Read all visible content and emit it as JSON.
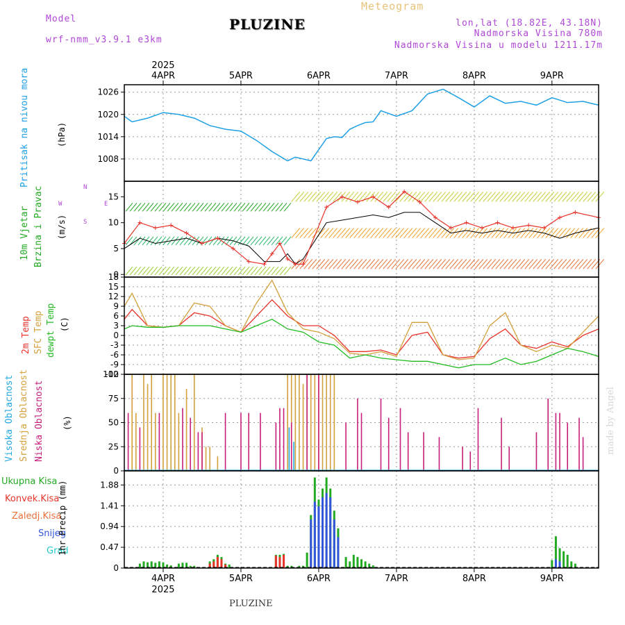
{
  "header": {
    "model_label": "Model",
    "model_name": "wrf-nmm_v3.9.1 e3km",
    "title": "PLUZINE",
    "subtitle": "Meteogram",
    "coords": "lon,lat (18.82E, 43.18N)",
    "altitude": "Nadmorska Visina 780m",
    "model_altitude": "Nadmorska Visina u modelu 1211.17m"
  },
  "footer": {
    "station": "PLUZINE",
    "credit": "made by Angel"
  },
  "colors": {
    "pressure": "#1ea0e6",
    "wind": "#22aa22",
    "temp2m": "#e8322a",
    "sfc": "#d4a03c",
    "dewpt": "#22bb22",
    "high": "#22a8e0",
    "mid": "#d4a03c",
    "low": "#c81e7a",
    "precip": "#22aa22",
    "conv": "#e8322a",
    "snow": "#3355dd",
    "grad": "#22cccc"
  },
  "chart_data": [
    {
      "type": "line",
      "name": "pressure",
      "ylabel_title": "Pritisak na nivou mora",
      "ylabel_unit": "(hPa)",
      "ylim": [
        1002,
        1028
      ],
      "yticks": [
        "1026",
        "1020",
        "1014",
        "1008"
      ],
      "ytick_values": [
        1026,
        1020,
        1014,
        1008
      ],
      "x": [
        0,
        0.1,
        0.3,
        0.5,
        0.7,
        0.9,
        1.1,
        1.3,
        1.5,
        1.7,
        1.9,
        2.1,
        2.2,
        2.3,
        2.4,
        2.5,
        2.6,
        2.7,
        2.8,
        2.9,
        3.0,
        3.1,
        3.2,
        3.3,
        3.5,
        3.7,
        3.9,
        4.1,
        4.3,
        4.5,
        4.7,
        4.9,
        5.1,
        5.3,
        5.5,
        5.7,
        5.9,
        6.1
      ],
      "values": [
        1019.5,
        1018,
        1019,
        1020.5,
        1020,
        1019,
        1017,
        1016,
        1015.5,
        1013,
        1010,
        1007.5,
        1008.5,
        1008,
        1007.5,
        1010.5,
        1013.5,
        1014,
        1013.8,
        1016,
        1017,
        1017.8,
        1018,
        1021,
        1019.5,
        1021,
        1025.5,
        1026.8,
        1024.5,
        1022,
        1025,
        1023,
        1023.5,
        1022.5,
        1024.5,
        1023.2,
        1023.5,
        1022.5
      ]
    },
    {
      "type": "line",
      "name": "wind",
      "ylabel_title": "10m Vjetar",
      "ylabel_sub": "Brzina i Pravac",
      "ylabel_unit": "(m/s)",
      "ylim": [
        -0.5,
        18
      ],
      "yticks": [
        "15",
        "10",
        "5",
        "0"
      ],
      "ytick_values": [
        15,
        10,
        5,
        0
      ],
      "compass": {
        "n": "N",
        "e": "E",
        "w": "W",
        "s": "S"
      },
      "series": [
        {
          "name": "speed",
          "x": [
            0,
            0.2,
            0.4,
            0.6,
            0.8,
            1.0,
            1.2,
            1.4,
            1.6,
            1.8,
            2.0,
            2.1,
            2.2,
            2.3,
            2.6,
            2.8,
            3.0,
            3.2,
            3.4,
            3.6,
            3.8,
            4.0,
            4.2,
            4.4,
            4.6,
            4.8,
            5.0,
            5.2,
            5.4,
            5.6,
            5.8,
            6.1
          ],
          "values": [
            5,
            7,
            6,
            6.5,
            7,
            6,
            7,
            6.5,
            5.5,
            2.5,
            2.5,
            4,
            2,
            3,
            10,
            10.5,
            11,
            11.5,
            11,
            12,
            12,
            10,
            8,
            8.5,
            8,
            8.5,
            8,
            8.5,
            8,
            7,
            8,
            9
          ]
        },
        {
          "name": "gust",
          "x": [
            0,
            0.2,
            0.4,
            0.6,
            0.8,
            1.0,
            1.2,
            1.4,
            1.6,
            1.8,
            1.9,
            2.0,
            2.1,
            2.2,
            2.3,
            2.6,
            2.8,
            3.0,
            3.2,
            3.4,
            3.6,
            3.8,
            4.0,
            4.2,
            4.4,
            4.6,
            4.8,
            5.0,
            5.2,
            5.4,
            5.6,
            5.8,
            6.1
          ],
          "values": [
            6,
            10,
            9,
            9.5,
            8,
            6,
            7,
            5,
            2.5,
            2,
            4,
            6,
            3,
            2,
            2,
            13,
            15,
            14,
            15,
            13,
            16,
            14,
            11,
            9,
            10,
            9,
            10,
            9,
            9.5,
            9,
            11,
            12,
            11
          ]
        }
      ]
    },
    {
      "type": "line",
      "name": "temperature",
      "ylabel_title": "2m Temp",
      "ylabel_sfc": "SFC Temp",
      "ylabel_dew": "dewpt Temp",
      "ylabel_unit": "(C)",
      "ylim": [
        -12,
        18
      ],
      "yticks": [
        "18",
        "15",
        "12",
        "9",
        "6",
        "3",
        "0",
        "-3",
        "-6",
        "-9",
        "-12"
      ],
      "ytick_values": [
        18,
        15,
        12,
        9,
        6,
        3,
        0,
        -3,
        -6,
        -9,
        -12
      ],
      "series": [
        {
          "name": "2m",
          "x": [
            0,
            0.1,
            0.3,
            0.5,
            0.7,
            0.9,
            1.1,
            1.3,
            1.5,
            1.7,
            1.9,
            2.1,
            2.3,
            2.5,
            2.7,
            2.9,
            3.1,
            3.3,
            3.5,
            3.7,
            3.9,
            4.1,
            4.3,
            4.5,
            4.7,
            4.9,
            5.1,
            5.3,
            5.5,
            5.7,
            5.9,
            6.1
          ],
          "values": [
            5,
            8,
            3,
            2.5,
            3,
            7,
            6,
            3,
            1,
            6,
            11,
            6,
            3,
            3,
            0,
            -5,
            -5,
            -4.5,
            -6,
            0,
            1,
            -6,
            -7,
            -6.5,
            -1,
            2,
            -3,
            -4,
            -2,
            -3.5,
            0,
            2
          ]
        },
        {
          "name": "sfc",
          "x": [
            0,
            0.1,
            0.3,
            0.5,
            0.7,
            0.9,
            1.1,
            1.3,
            1.5,
            1.7,
            1.9,
            2.1,
            2.3,
            2.5,
            2.7,
            2.9,
            3.1,
            3.3,
            3.5,
            3.7,
            3.9,
            4.1,
            4.3,
            4.5,
            4.7,
            4.9,
            5.1,
            5.3,
            5.5,
            5.7,
            5.9,
            6.1
          ],
          "values": [
            9,
            13,
            3,
            2.5,
            3,
            10,
            9,
            3,
            1,
            10,
            17,
            7,
            2,
            1,
            -1,
            -5.5,
            -6,
            -5,
            -6.5,
            4,
            4,
            -6,
            -7.5,
            -7,
            3,
            7,
            -3,
            -5,
            -3,
            -4,
            1,
            6
          ]
        },
        {
          "name": "dewpt",
          "x": [
            0,
            0.1,
            0.3,
            0.5,
            0.7,
            0.9,
            1.1,
            1.3,
            1.5,
            1.7,
            1.9,
            2.1,
            2.3,
            2.5,
            2.7,
            2.9,
            3.1,
            3.3,
            3.5,
            3.7,
            3.9,
            4.1,
            4.3,
            4.5,
            4.7,
            4.9,
            5.1,
            5.3,
            5.5,
            5.7,
            5.9,
            6.1
          ],
          "values": [
            2,
            3,
            2.5,
            2.5,
            3,
            3,
            3,
            2,
            1,
            3,
            5,
            2,
            1,
            -2,
            -3,
            -7,
            -6,
            -7,
            -7.5,
            -8,
            -8,
            -9,
            -10,
            -9,
            -9,
            -7,
            -9,
            -8,
            -6,
            -4,
            -5,
            -6.5
          ]
        }
      ]
    },
    {
      "type": "bar",
      "name": "cloud",
      "ylabel_high": "Visoka Oblacnost",
      "ylabel_mid": "Srednja Oblacnost",
      "ylabel_low": "Niska Oblacnost",
      "ylabel_unit": "(%)",
      "ylim": [
        0,
        100
      ],
      "yticks": [
        "100",
        "75",
        "50",
        "25",
        "0"
      ],
      "ytick_values": [
        100,
        75,
        50,
        25,
        0
      ],
      "series": [
        {
          "name": "mid",
          "x": [
            0.1,
            0.15,
            0.25,
            0.3,
            0.35,
            0.4,
            0.5,
            0.55,
            0.6,
            0.65,
            0.7,
            0.8,
            0.9,
            1.0,
            1.05,
            1.1,
            1.2,
            2.1,
            2.15,
            2.2,
            2.25,
            2.3,
            2.35,
            2.4,
            2.45,
            2.5,
            2.55,
            2.6,
            2.65,
            2.7
          ],
          "values": [
            100,
            60,
            100,
            90,
            100,
            60,
            100,
            100,
            100,
            100,
            60,
            85,
            100,
            45,
            25,
            25,
            15,
            100,
            100,
            100,
            100,
            90,
            100,
            100,
            100,
            100,
            100,
            100,
            100,
            100
          ]
        },
        {
          "name": "low",
          "x": [
            0.05,
            0.2,
            0.45,
            0.75,
            0.85,
            0.95,
            1.0,
            1.3,
            1.5,
            1.6,
            1.75,
            1.95,
            2.0,
            2.05,
            2.15,
            2.35,
            2.5,
            2.85,
            3.0,
            3.05,
            3.3,
            3.4,
            3.55,
            3.65,
            3.85,
            4.05,
            4.35,
            4.45,
            4.55,
            4.85,
            4.95,
            5.3,
            5.45,
            5.55,
            5.6,
            5.7,
            5.85,
            5.9
          ],
          "values": [
            60,
            45,
            60,
            65,
            55,
            40,
            40,
            60,
            60,
            60,
            60,
            50,
            65,
            65,
            50,
            100,
            100,
            50,
            75,
            60,
            75,
            55,
            65,
            40,
            40,
            35,
            25,
            20,
            65,
            55,
            25,
            40,
            75,
            60,
            60,
            50,
            55,
            35
          ]
        },
        {
          "name": "high",
          "x": [
            2.12,
            2.18
          ],
          "values": [
            45,
            30
          ]
        }
      ]
    },
    {
      "type": "bar",
      "name": "precip",
      "ylabel": "1hr Precip (mm)",
      "legend": [
        "Ukupna Kisa",
        "Konvek.Kisa",
        "Zaledj.Kisa",
        "Snijeg",
        "Grad"
      ],
      "ylim": [
        0,
        2.2
      ],
      "yticks": [
        "1.88",
        "1.41",
        "0.94",
        "0.47",
        "0"
      ],
      "ytick_values": [
        1.88,
        1.41,
        0.94,
        0.47,
        0
      ],
      "series": [
        {
          "name": "total",
          "x": [
            0.2,
            0.25,
            0.3,
            0.35,
            0.4,
            0.45,
            0.5,
            0.55,
            0.6,
            0.7,
            0.75,
            0.8,
            0.85,
            0.9,
            1.1,
            1.15,
            1.2,
            1.25,
            1.3,
            1.35,
            1.95,
            2.0,
            2.05,
            2.1,
            2.15,
            2.25,
            2.3,
            2.35,
            2.4,
            2.45,
            2.5,
            2.55,
            2.6,
            2.65,
            2.7,
            2.75,
            2.85,
            2.9,
            2.95,
            3.0,
            3.05,
            3.1,
            3.15,
            3.2,
            5.5,
            5.55,
            5.6,
            5.65,
            5.7,
            5.75,
            5.8
          ],
          "values": [
            0.1,
            0.15,
            0.13,
            0.15,
            0.12,
            0.15,
            0.13,
            0.08,
            0.06,
            0.1,
            0.12,
            0.12,
            0.05,
            0.05,
            0.15,
            0.2,
            0.3,
            0.25,
            0.1,
            0.08,
            0.3,
            0.3,
            0.32,
            0.05,
            0.05,
            0.05,
            0.05,
            0.35,
            1.2,
            2.05,
            1.55,
            1.8,
            2.05,
            1.8,
            1.3,
            0.9,
            0.25,
            0.15,
            0.3,
            0.25,
            0.2,
            0.15,
            0.1,
            0.06,
            0.18,
            0.72,
            0.45,
            0.38,
            0.3,
            0.15,
            0.1
          ]
        },
        {
          "name": "convective",
          "x": [
            1.1,
            1.15,
            1.2,
            1.25,
            1.3,
            1.95,
            2.0,
            2.05
          ],
          "values": [
            0.1,
            0.15,
            0.25,
            0.2,
            0.08,
            0.28,
            0.25,
            0.3
          ]
        },
        {
          "name": "snow",
          "x": [
            2.4,
            2.45,
            2.5,
            2.55,
            2.6,
            2.65,
            2.7,
            2.75,
            5.55,
            5.6
          ],
          "values": [
            1.1,
            1.5,
            1.4,
            1.6,
            1.7,
            1.6,
            1.1,
            0.7,
            0.2,
            0.15
          ]
        }
      ]
    }
  ],
  "time_axis": {
    "year": "2025",
    "dates": [
      "4APR",
      "5APR",
      "6APR",
      "7APR",
      "8APR",
      "9APR"
    ],
    "date_values": [
      0.5,
      1.5,
      2.5,
      3.5,
      4.5,
      5.5
    ],
    "range": [
      0,
      6.1
    ]
  }
}
